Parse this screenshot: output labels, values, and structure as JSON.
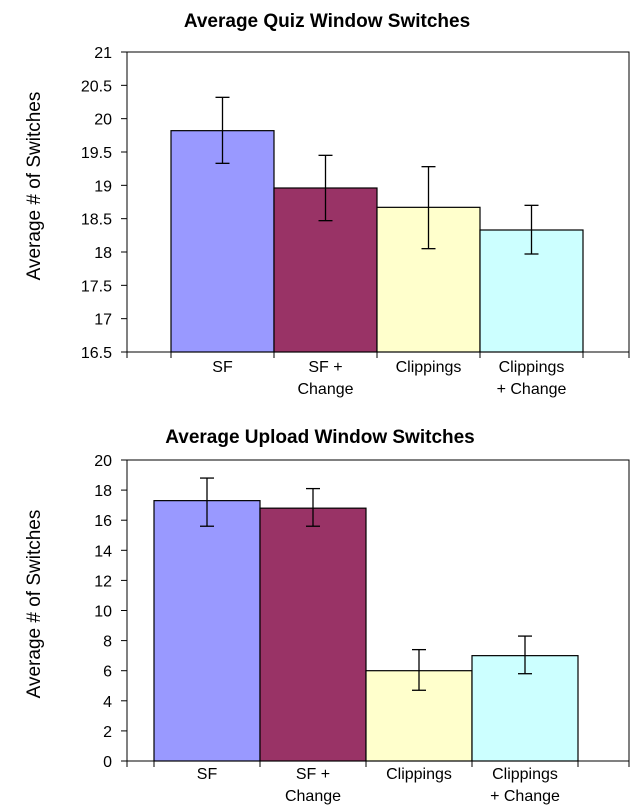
{
  "chart_data": [
    {
      "type": "bar",
      "title": "Average Quiz Window Switches",
      "ylabel": "Average # of Switches",
      "xlabel": "",
      "ylim": [
        16.5,
        21
      ],
      "yticks": [
        "16.5",
        "17",
        "17.5",
        "18",
        "18.5",
        "19",
        "19.5",
        "20",
        "20.5",
        "21"
      ],
      "categories": [
        [
          "SF"
        ],
        [
          "SF +",
          "Change"
        ],
        [
          "Clippings"
        ],
        [
          "Clippings",
          "+ Change"
        ]
      ],
      "values": [
        19.82,
        18.96,
        18.67,
        18.33
      ],
      "error_low": [
        19.33,
        18.47,
        18.05,
        17.97
      ],
      "error_high": [
        20.32,
        19.45,
        19.28,
        18.7
      ],
      "colors": [
        "#9999ff",
        "#993366",
        "#ffffcc",
        "#ccffff"
      ],
      "grid": false,
      "legend": "none"
    },
    {
      "type": "bar",
      "title": "Average Upload Window Switches",
      "ylabel": "Average # of Switches",
      "xlabel": "",
      "ylim": [
        0,
        20
      ],
      "yticks": [
        "0",
        "2",
        "4",
        "6",
        "8",
        "10",
        "12",
        "14",
        "16",
        "18",
        "20"
      ],
      "categories": [
        [
          "SF"
        ],
        [
          "SF +",
          "Change"
        ],
        [
          "Clippings"
        ],
        [
          "Clippings",
          "+ Change"
        ]
      ],
      "values": [
        17.3,
        16.8,
        6.0,
        7.0
      ],
      "error_low": [
        15.6,
        15.6,
        4.7,
        5.8
      ],
      "error_high": [
        18.8,
        18.1,
        7.4,
        8.3
      ],
      "colors": [
        "#9999ff",
        "#993366",
        "#ffffcc",
        "#ccffff"
      ],
      "grid": false,
      "legend": "none"
    }
  ]
}
